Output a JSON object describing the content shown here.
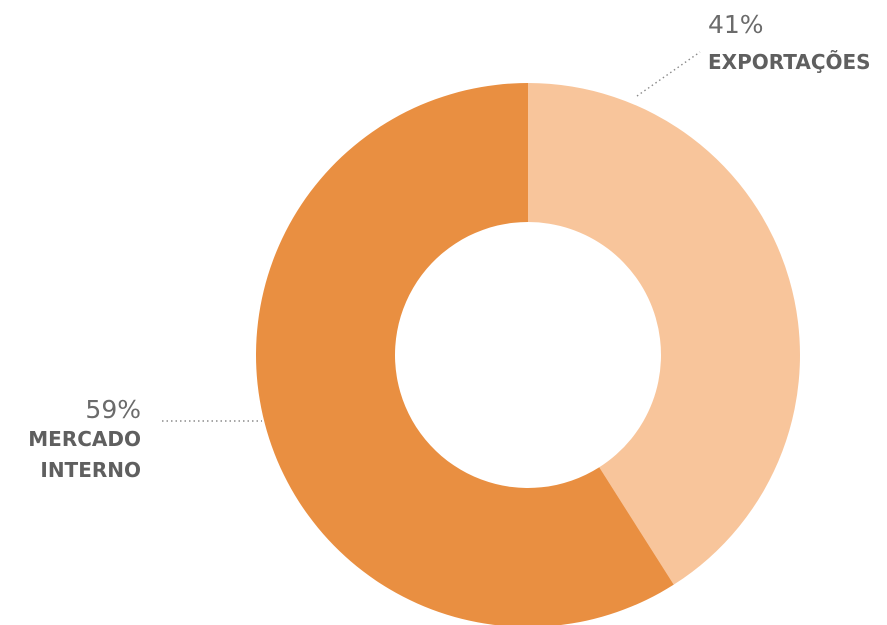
{
  "chart_data": {
    "type": "pie",
    "donut": true,
    "title": "",
    "categories": [
      "EXPORTAÇÕES",
      "MERCADO INTERNO"
    ],
    "values": [
      41,
      59
    ],
    "value_labels": [
      "41%",
      "59%"
    ],
    "label_lines": [
      [
        "EXPORTAÇÕES"
      ],
      [
        "MERCADO",
        "INTERNO"
      ]
    ],
    "colors": [
      "#f8c59b",
      "#e98f41"
    ],
    "legend": "none",
    "start_angle_deg": 0,
    "direction": "clockwise"
  }
}
